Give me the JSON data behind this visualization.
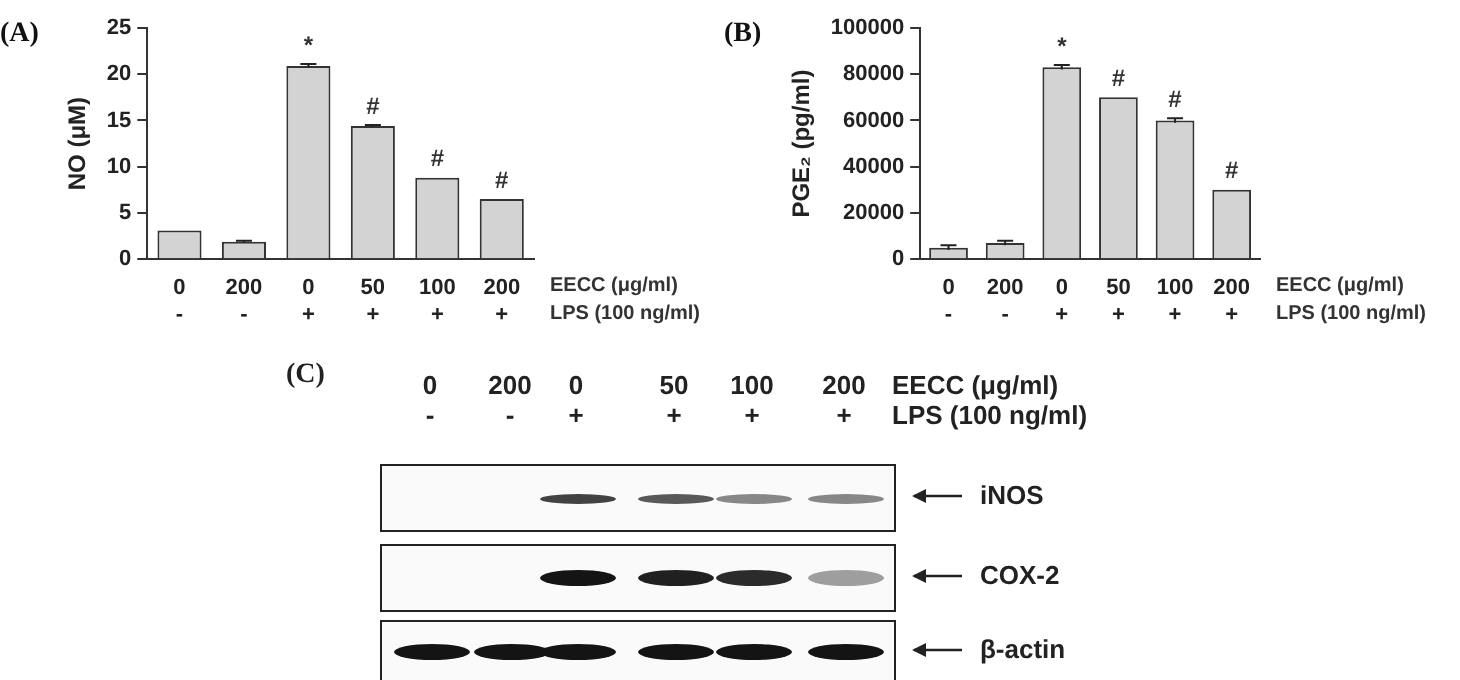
{
  "chart_data": [
    {
      "type": "bar",
      "title": "(A)",
      "ylabel": "NO (μM)",
      "xlabel": "EECC (μg/ml)\nLPS (100 ng/ml)",
      "categories": [
        "0\n-",
        "200\n-",
        "0\n+",
        "50\n+",
        "100\n+",
        "200\n+"
      ],
      "values": [
        3.1,
        1.9,
        20.9,
        14.4,
        8.8,
        6.5
      ],
      "errors": [
        null,
        0.1,
        0.2,
        0.1,
        null,
        null
      ],
      "value_labels": [
        null,
        null,
        "*",
        "#",
        "#",
        "#"
      ],
      "color": "#d3d3d3",
      "ylim": [
        0,
        25
      ],
      "yticks": [
        0,
        5,
        10,
        15,
        20,
        25
      ],
      "grid": false,
      "legend": false
    },
    {
      "type": "bar",
      "title": "(B)",
      "ylabel": "PGE₂ (pg/ml)",
      "xlabel": "EECC (μg/ml)\nLPS (100 ng/ml)",
      "categories": [
        "0\n-",
        "200\n-",
        "0\n+",
        "50\n+",
        "100\n+",
        "200\n+"
      ],
      "values": [
        5000,
        7000,
        83000,
        70000,
        60000,
        30000
      ],
      "errors": [
        1000,
        1000,
        1000,
        null,
        1000,
        null
      ],
      "value_labels": [
        null,
        null,
        "*",
        "#",
        "#",
        "#"
      ],
      "color": "#d3d3d3",
      "ylim": [
        0,
        100000
      ],
      "yticks": [
        0,
        20000,
        40000,
        60000,
        80000,
        100000
      ],
      "grid": false,
      "legend": false
    },
    {
      "type": "other",
      "title": "(C)",
      "xlabel": "EECC (μg/ml)\nLPS (100 ng/ml)",
      "categories": [
        "0\n-",
        "200\n-",
        "0\n+",
        "50\n+",
        "100\n+",
        "200\n+"
      ],
      "annotations": [
        "iNOS",
        "COX-2",
        "β-actin"
      ]
    }
  ]
}
